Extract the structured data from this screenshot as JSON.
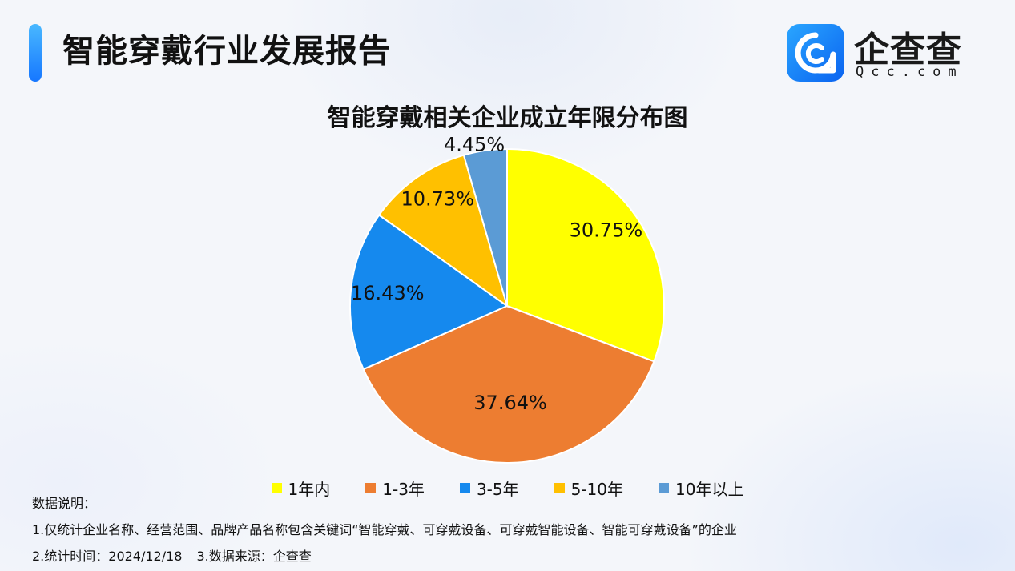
{
  "header": {
    "title": "智能穿戴行业发展报告",
    "logo": {
      "name": "企查查",
      "domain": "Qcc.com",
      "icon": "qcc-logo-icon",
      "brand_color": "#1677ff"
    }
  },
  "chart_data": {
    "type": "pie",
    "title": "智能穿戴相关企业成立年限分布图",
    "categories": [
      "1年内",
      "1-3年",
      "3-5年",
      "5-10年",
      "10年以上"
    ],
    "values": [
      30.75,
      37.64,
      16.43,
      10.73,
      4.45
    ],
    "labels": [
      "30.75%",
      "37.64%",
      "16.43%",
      "10.73%",
      "4.45%"
    ],
    "colors": [
      "#ffff00",
      "#ed7d31",
      "#1589ee",
      "#ffc000",
      "#5b9bd5"
    ],
    "start_angle": "12 o'clock",
    "direction": "clockwise",
    "legend_position": "bottom"
  },
  "notes": {
    "heading": "数据说明：",
    "line1": "1.仅统计企业名称、经营范围、品牌产品名称包含关键词“智能穿戴、可穿戴设备、可穿戴智能设备、智能可穿戴设备”的企业",
    "line2a": "2.统计时间：2024/12/18",
    "line2b": "3.数据来源：企查查"
  }
}
